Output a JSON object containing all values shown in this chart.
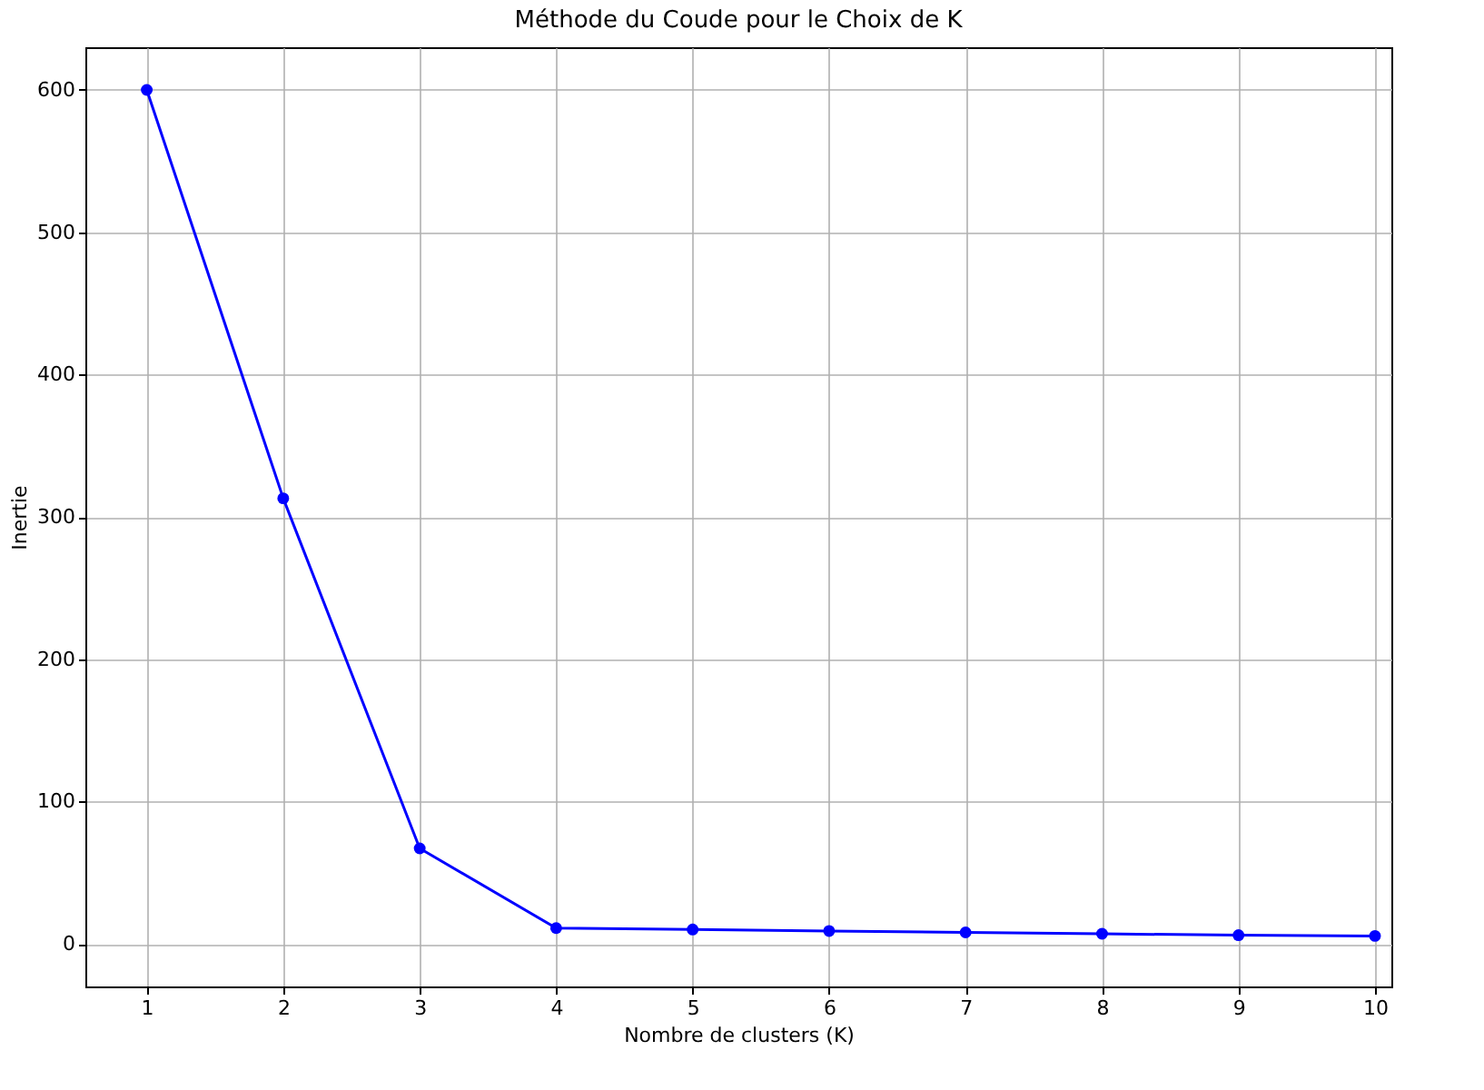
{
  "chart_data": {
    "type": "line",
    "title": "Méthode du Coude pour le Choix de K",
    "xlabel": "Nombre de clusters (K)",
    "ylabel": "Inertie",
    "x": [
      1,
      2,
      3,
      4,
      5,
      6,
      7,
      8,
      9,
      10
    ],
    "series": [
      {
        "color": "#0000ff",
        "values": [
          600,
          313,
          67,
          11,
          10,
          9,
          8,
          7,
          6,
          5.5
        ]
      }
    ],
    "xlim": [
      0.55,
      10.12
    ],
    "xticks": [
      1,
      2,
      3,
      4,
      5,
      6,
      7,
      8,
      9,
      10
    ],
    "ylim": [
      -30,
      630
    ],
    "yticks": [
      0,
      100,
      200,
      300,
      400,
      500,
      600
    ],
    "grid": true,
    "marker": "circle",
    "line_style": "solid"
  }
}
